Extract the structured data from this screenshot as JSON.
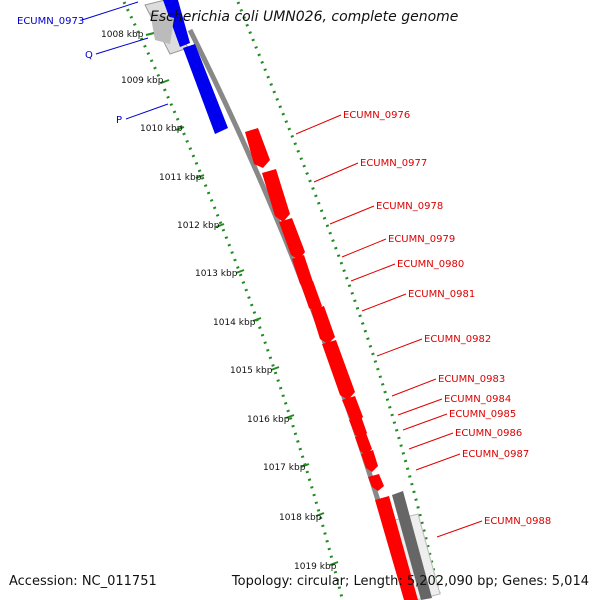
{
  "title": "Escherichia coli UMN026, complete genome",
  "footer": {
    "accession": "Accession: NC_011751",
    "topology": "Topology: circular; Length: 5,202,090 bp; Genes: 5,014"
  },
  "colors": {
    "forward_gene": "#0000ee",
    "reverse_gene": "#ff0000",
    "other_feature": "#666666",
    "backbone": "#888888",
    "ticks": "#228B22"
  },
  "ticks": [
    "1008 kbp",
    "1009 kbp",
    "1010 kbp",
    "1011 kbp",
    "1012 kbp",
    "1013 kbp",
    "1014 kbp",
    "1015 kbp",
    "1016 kbp",
    "1017 kbp",
    "1018 kbp",
    "1019 kbp"
  ],
  "gene_labels": {
    "forward": [
      "ECUMN_0973",
      "Q",
      "P"
    ],
    "reverse": [
      "ECUMN_0976",
      "ECUMN_0977",
      "ECUMN_0978",
      "ECUMN_0979",
      "ECUMN_0980",
      "ECUMN_0981",
      "ECUMN_0982",
      "ECUMN_0983",
      "ECUMN_0984",
      "ECUMN_0985",
      "ECUMN_0986",
      "ECUMN_0987",
      "ECUMN_0988"
    ]
  }
}
